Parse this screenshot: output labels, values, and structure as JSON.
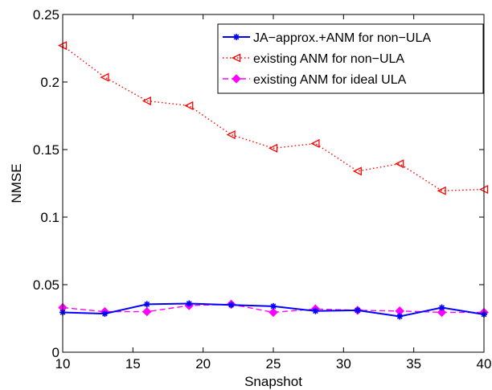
{
  "chart_data": {
    "type": "line",
    "title": "",
    "xlabel": "Snapshot",
    "ylabel": "NMSE",
    "xlim": [
      10,
      40
    ],
    "ylim": [
      0,
      0.25
    ],
    "xticks": [
      10,
      15,
      20,
      25,
      30,
      35,
      40
    ],
    "yticks": [
      0,
      0.05,
      0.1,
      0.15,
      0.2,
      0.25
    ],
    "ytick_labels": [
      "0",
      "0.05",
      "0.1",
      "0.15",
      "0.2",
      "0.25"
    ],
    "grid": false,
    "legend_position": "top-right",
    "x": [
      10,
      13,
      16,
      19,
      22,
      25,
      28,
      31,
      34,
      37,
      40
    ],
    "series": [
      {
        "name": "JA−approx.+ANM for non−ULA",
        "values": [
          0.0295,
          0.0285,
          0.0355,
          0.036,
          0.035,
          0.034,
          0.0305,
          0.031,
          0.0265,
          0.033,
          0.028
        ],
        "color": "#0000ff",
        "line_style": "solid",
        "marker": "asterisk"
      },
      {
        "name": "existing ANM for non−ULA",
        "values": [
          0.227,
          0.2035,
          0.186,
          0.1825,
          0.161,
          0.151,
          0.1545,
          0.134,
          0.1395,
          0.1195,
          0.1205
        ],
        "color": "#ff0000",
        "line_style": "dotted",
        "marker": "left-triangle"
      },
      {
        "name": "existing ANM for ideal ULA",
        "values": [
          0.033,
          0.03,
          0.03,
          0.0345,
          0.0355,
          0.0295,
          0.032,
          0.031,
          0.0305,
          0.0295,
          0.0295
        ],
        "color": "#ff00ff",
        "line_style": "dashed",
        "marker": "diamond"
      }
    ]
  }
}
